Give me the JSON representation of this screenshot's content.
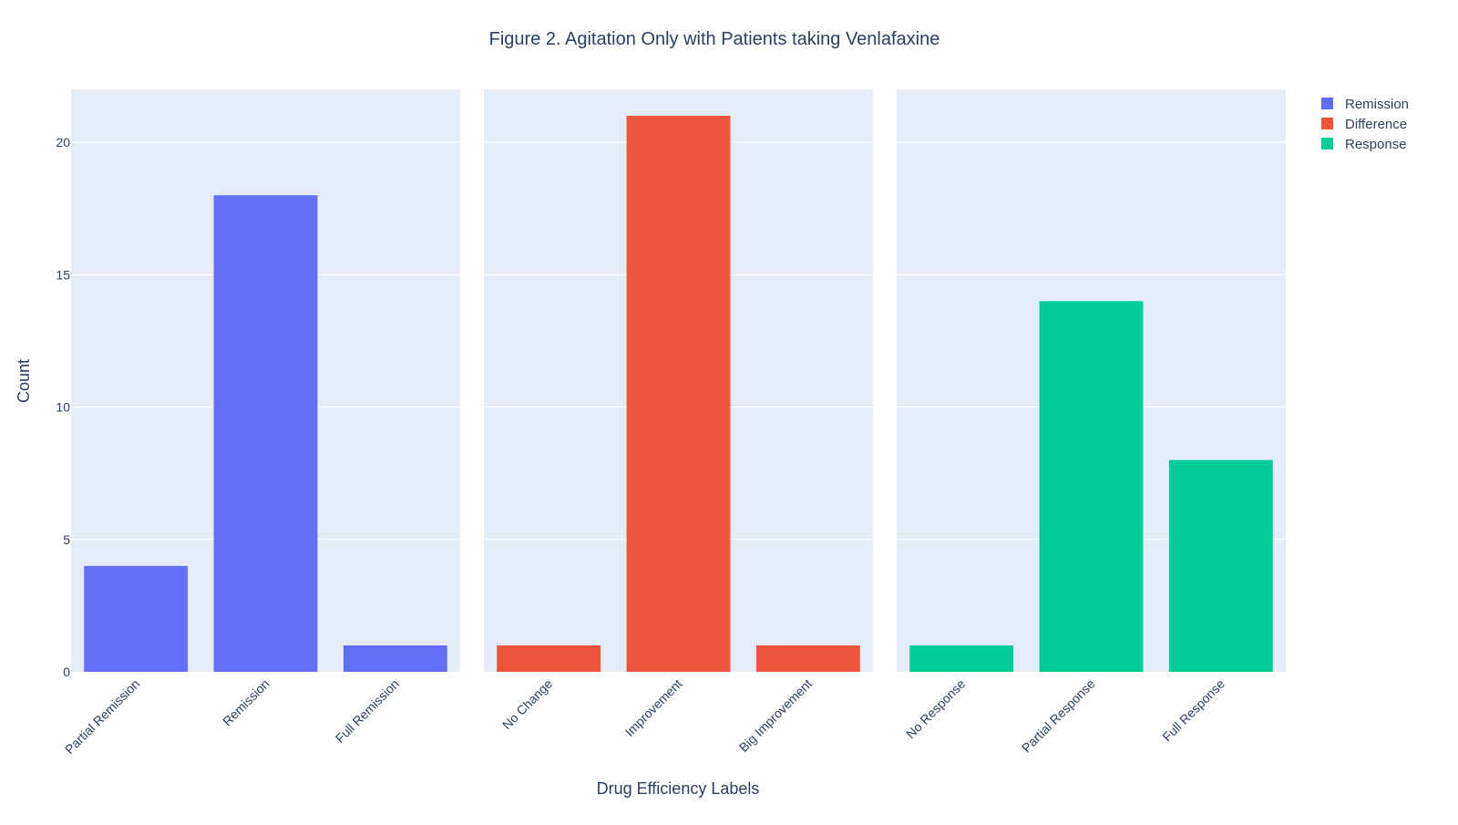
{
  "chart_data": {
    "type": "bar",
    "title": "Figure 2. Agitation Only with Patients taking Venlafaxine",
    "xlabel": "Drug Efficiency Labels",
    "ylabel": "Count",
    "ylim": [
      0,
      22
    ],
    "yticks": [
      0,
      5,
      10,
      15,
      20
    ],
    "grid": true,
    "legend_position": "top-right",
    "panels": [
      {
        "series": "Remission",
        "color": "#636efa",
        "categories": [
          "Partial Remission",
          "Remission",
          "Full Remission"
        ],
        "values": [
          4,
          18,
          1
        ]
      },
      {
        "series": "Difference",
        "color": "#ef553b",
        "categories": [
          "No Change",
          "Improvement",
          "Big Improvement"
        ],
        "values": [
          1,
          21,
          1
        ]
      },
      {
        "series": "Response",
        "color": "#00cc96",
        "categories": [
          "No Response",
          "Partial Response",
          "Full Response"
        ],
        "values": [
          1,
          14,
          8
        ]
      }
    ],
    "legend": [
      {
        "name": "Remission",
        "color": "#636efa"
      },
      {
        "name": "Difference",
        "color": "#ef553b"
      },
      {
        "name": "Response",
        "color": "#00cc96"
      }
    ]
  }
}
